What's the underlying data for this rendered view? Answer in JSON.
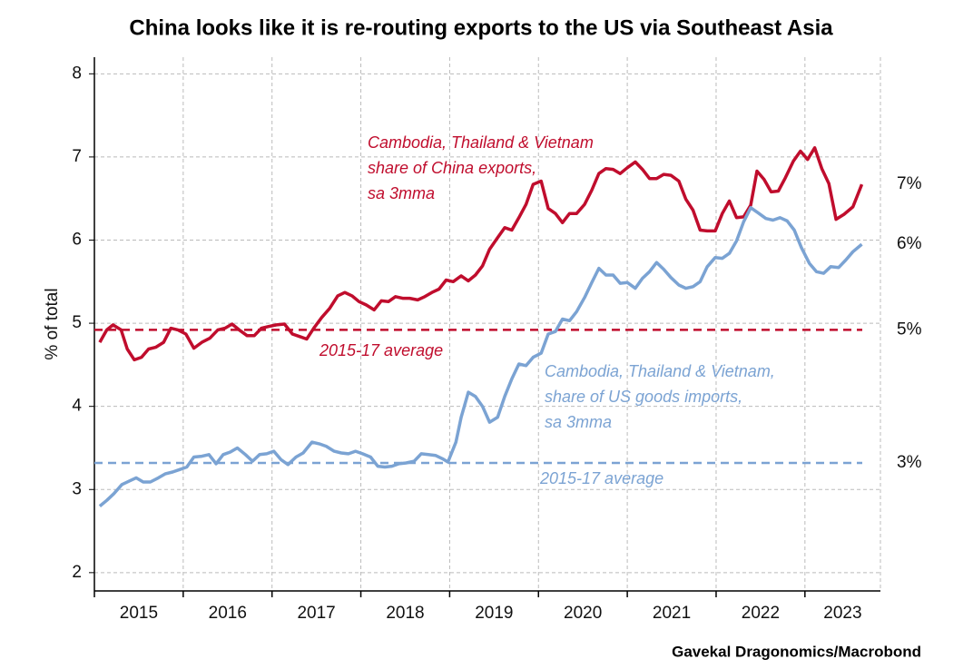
{
  "chart_data": {
    "type": "line",
    "title": "China looks like it is re-routing exports to the US via Southeast Asia",
    "y_label": "% of total",
    "source": "Gavekal Dragonomics/Macrobond",
    "xlim": [
      2015,
      2023.85
    ],
    "xticks": [
      2015,
      2016,
      2017,
      2018,
      2019,
      2020,
      2021,
      2022,
      2023
    ],
    "ylim": [
      1.78,
      8.2
    ],
    "yticks": [
      2,
      3,
      4,
      5,
      6,
      7,
      8
    ],
    "grid": true,
    "series": [
      {
        "label_lines": [
          "Cambodia, Thailand & Vietnam",
          "share of China exports,",
          "sa 3mma"
        ],
        "color": "#c00d2d",
        "end_label": "7%",
        "x": [
          2015.06,
          2015.14,
          2015.21,
          2015.3,
          2015.37,
          2015.45,
          2015.53,
          2015.61,
          2015.69,
          2015.78,
          2015.86,
          2015.94,
          2016.03,
          2016.12,
          2016.21,
          2016.3,
          2016.39,
          2016.47,
          2016.55,
          2016.63,
          2016.72,
          2016.8,
          2016.88,
          2016.96,
          2017.05,
          2017.14,
          2017.23,
          2017.31,
          2017.39,
          2017.47,
          2017.56,
          2017.65,
          2017.74,
          2017.82,
          2017.9,
          2017.98,
          2018.06,
          2018.15,
          2018.23,
          2018.31,
          2018.39,
          2018.47,
          2018.55,
          2018.64,
          2018.72,
          2018.8,
          2018.88,
          2018.96,
          2019.04,
          2019.13,
          2019.21,
          2019.29,
          2019.37,
          2019.45,
          2019.54,
          2019.62,
          2019.7,
          2019.78,
          2019.86,
          2019.94,
          2020.03,
          2020.11,
          2020.19,
          2020.27,
          2020.35,
          2020.43,
          2020.52,
          2020.6,
          2020.68,
          2020.76,
          2020.84,
          2020.92,
          2021.0,
          2021.09,
          2021.17,
          2021.25,
          2021.33,
          2021.41,
          2021.49,
          2021.58,
          2021.66,
          2021.74,
          2021.82,
          2021.9,
          2021.99,
          2022.07,
          2022.15,
          2022.23,
          2022.31,
          2022.39,
          2022.46,
          2022.54,
          2022.62,
          2022.7,
          2022.78,
          2022.87,
          2022.95,
          2023.03,
          2023.11,
          2023.19,
          2023.27,
          2023.35,
          2023.44,
          2023.54,
          2023.64
        ],
        "values": [
          4.77,
          4.92,
          4.98,
          4.92,
          4.69,
          4.56,
          4.59,
          4.69,
          4.71,
          4.77,
          4.94,
          4.92,
          4.87,
          4.7,
          4.77,
          4.82,
          4.92,
          4.94,
          4.99,
          4.92,
          4.85,
          4.85,
          4.94,
          4.96,
          4.98,
          4.99,
          4.87,
          4.84,
          4.81,
          4.94,
          5.07,
          5.18,
          5.33,
          5.37,
          5.33,
          5.26,
          5.22,
          5.16,
          5.27,
          5.26,
          5.32,
          5.3,
          5.3,
          5.28,
          5.32,
          5.37,
          5.41,
          5.52,
          5.5,
          5.57,
          5.51,
          5.58,
          5.69,
          5.89,
          6.03,
          6.15,
          6.12,
          6.27,
          6.43,
          6.67,
          6.71,
          6.38,
          6.32,
          6.21,
          6.32,
          6.32,
          6.43,
          6.6,
          6.8,
          6.86,
          6.85,
          6.8,
          6.87,
          6.94,
          6.85,
          6.74,
          6.74,
          6.79,
          6.78,
          6.71,
          6.49,
          6.36,
          6.12,
          6.11,
          6.11,
          6.32,
          6.47,
          6.27,
          6.28,
          6.42,
          6.83,
          6.73,
          6.58,
          6.59,
          6.75,
          6.95,
          7.07,
          6.97,
          7.11,
          6.86,
          6.68,
          6.25,
          6.31,
          6.4,
          6.67
        ]
      },
      {
        "label_lines": [
          "Cambodia, Thailand & Vietnam,",
          "share of US goods imports,",
          "sa 3mma"
        ],
        "color": "#7ba3d3",
        "end_label": "6%",
        "x": [
          2015.06,
          2015.14,
          2015.22,
          2015.31,
          2015.39,
          2015.47,
          2015.55,
          2015.63,
          2015.72,
          2015.8,
          2015.88,
          2015.96,
          2016.04,
          2016.12,
          2016.21,
          2016.29,
          2016.37,
          2016.45,
          2016.53,
          2016.61,
          2016.7,
          2016.78,
          2016.86,
          2016.94,
          2017.02,
          2017.1,
          2017.18,
          2017.27,
          2017.35,
          2017.45,
          2017.53,
          2017.61,
          2017.7,
          2017.78,
          2017.86,
          2017.94,
          2018.02,
          2018.11,
          2018.19,
          2018.27,
          2018.35,
          2018.43,
          2018.51,
          2018.6,
          2018.68,
          2018.76,
          2018.84,
          2018.92,
          2018.98,
          2019.07,
          2019.13,
          2019.21,
          2019.29,
          2019.37,
          2019.45,
          2019.54,
          2019.62,
          2019.7,
          2019.78,
          2019.86,
          2019.94,
          2020.03,
          2020.11,
          2020.19,
          2020.27,
          2020.35,
          2020.43,
          2020.52,
          2020.6,
          2020.68,
          2020.76,
          2020.84,
          2020.92,
          2021.0,
          2021.09,
          2021.17,
          2021.25,
          2021.33,
          2021.41,
          2021.49,
          2021.58,
          2021.66,
          2021.74,
          2021.82,
          2021.9,
          2021.99,
          2022.07,
          2022.15,
          2022.23,
          2022.31,
          2022.39,
          2022.47,
          2022.56,
          2022.64,
          2022.72,
          2022.8,
          2022.88,
          2022.96,
          2023.05,
          2023.13,
          2023.21,
          2023.29,
          2023.38,
          2023.46,
          2023.54,
          2023.64
        ],
        "values": [
          2.8,
          2.87,
          2.95,
          3.06,
          3.1,
          3.14,
          3.09,
          3.09,
          3.14,
          3.19,
          3.21,
          3.24,
          3.27,
          3.39,
          3.4,
          3.42,
          3.31,
          3.42,
          3.45,
          3.5,
          3.42,
          3.34,
          3.42,
          3.43,
          3.46,
          3.36,
          3.3,
          3.39,
          3.44,
          3.57,
          3.55,
          3.52,
          3.46,
          3.44,
          3.43,
          3.46,
          3.43,
          3.39,
          3.28,
          3.27,
          3.28,
          3.31,
          3.32,
          3.34,
          3.43,
          3.42,
          3.41,
          3.37,
          3.33,
          3.57,
          3.87,
          4.17,
          4.12,
          4.0,
          3.81,
          3.87,
          4.12,
          4.33,
          4.51,
          4.49,
          4.59,
          4.64,
          4.87,
          4.9,
          5.05,
          5.03,
          5.14,
          5.31,
          5.49,
          5.66,
          5.58,
          5.58,
          5.48,
          5.49,
          5.42,
          5.54,
          5.62,
          5.73,
          5.65,
          5.55,
          5.46,
          5.42,
          5.44,
          5.5,
          5.68,
          5.79,
          5.78,
          5.84,
          5.99,
          6.22,
          6.39,
          6.33,
          6.26,
          6.24,
          6.27,
          6.23,
          6.12,
          5.91,
          5.72,
          5.62,
          5.6,
          5.68,
          5.67,
          5.76,
          5.86,
          5.95
        ]
      }
    ],
    "reference_lines": [
      {
        "label": "2015-17 average",
        "value": 4.92,
        "value_label": "5%",
        "color": "#c00d2d"
      },
      {
        "label": "2015-17 average",
        "value": 3.32,
        "value_label": "3%",
        "color": "#7ba3d3"
      }
    ]
  }
}
